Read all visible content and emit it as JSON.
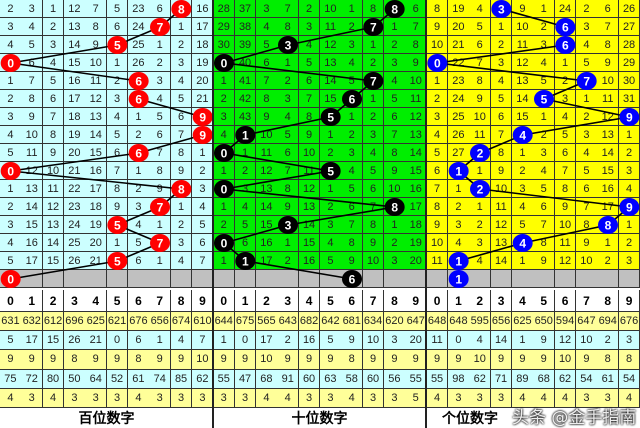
{
  "chart_data": {
    "type": "table",
    "header_digits": [
      "0",
      "1",
      "2",
      "3",
      "4",
      "5",
      "6",
      "7",
      "8",
      "9"
    ],
    "panels": [
      {
        "label": "百位数字",
        "cell_color": "#ccffff",
        "ball_color": "#ff0000",
        "hits": [
          8,
          7,
          5,
          0,
          6,
          6,
          9,
          9,
          6,
          0,
          8,
          7,
          5,
          7,
          5,
          0
        ],
        "rows": [
          [
            2,
            3,
            1,
            12,
            7,
            5,
            23,
            6,
            8,
            16
          ],
          [
            3,
            4,
            2,
            13,
            8,
            6,
            24,
            7,
            1,
            17
          ],
          [
            4,
            5,
            3,
            14,
            9,
            5,
            25,
            1,
            2,
            18
          ],
          [
            0,
            6,
            4,
            15,
            10,
            1,
            26,
            2,
            3,
            19
          ],
          [
            1,
            7,
            5,
            16,
            11,
            2,
            6,
            3,
            4,
            20
          ],
          [
            2,
            8,
            6,
            17,
            12,
            3,
            6,
            4,
            5,
            21
          ],
          [
            3,
            9,
            7,
            18,
            13,
            4,
            1,
            5,
            6,
            9
          ],
          [
            4,
            10,
            8,
            19,
            14,
            5,
            2,
            6,
            7,
            9
          ],
          [
            5,
            11,
            9,
            20,
            15,
            6,
            6,
            7,
            8,
            1
          ],
          [
            0,
            12,
            10,
            21,
            16,
            7,
            1,
            8,
            9,
            2
          ],
          [
            1,
            13,
            11,
            22,
            17,
            8,
            2,
            9,
            8,
            3
          ],
          [
            2,
            14,
            12,
            23,
            18,
            9,
            3,
            7,
            1,
            4
          ],
          [
            3,
            15,
            13,
            24,
            19,
            5,
            4,
            1,
            2,
            5
          ],
          [
            4,
            16,
            14,
            25,
            20,
            1,
            5,
            7,
            3,
            6
          ],
          [
            5,
            17,
            15,
            26,
            21,
            5,
            6,
            1,
            4,
            7
          ]
        ],
        "stats": [
          [
            631,
            632,
            612,
            696,
            625,
            621,
            676,
            656,
            674,
            610
          ],
          [
            5,
            17,
            15,
            26,
            21,
            0,
            6,
            1,
            4,
            7
          ],
          [
            9,
            9,
            9,
            8,
            9,
            9,
            8,
            9,
            9,
            10
          ],
          [
            75,
            72,
            80,
            50,
            64,
            52,
            61,
            74,
            85,
            62
          ],
          [
            4,
            3,
            4,
            3,
            3,
            3,
            4,
            3,
            3,
            3
          ]
        ]
      },
      {
        "label": "十位数字",
        "cell_color": "#00ee00",
        "ball_color": "#000000",
        "hits": [
          8,
          7,
          3,
          0,
          7,
          6,
          5,
          1,
          0,
          5,
          0,
          8,
          3,
          0,
          1,
          6
        ],
        "rows": [
          [
            28,
            37,
            3,
            7,
            2,
            10,
            1,
            8,
            8,
            6
          ],
          [
            29,
            38,
            4,
            8,
            3,
            11,
            2,
            7,
            1,
            7
          ],
          [
            30,
            39,
            5,
            3,
            4,
            12,
            3,
            1,
            2,
            8
          ],
          [
            0,
            40,
            6,
            1,
            5,
            13,
            4,
            2,
            3,
            9
          ],
          [
            1,
            41,
            7,
            2,
            6,
            14,
            5,
            7,
            4,
            10
          ],
          [
            2,
            42,
            8,
            3,
            7,
            15,
            6,
            1,
            5,
            11
          ],
          [
            3,
            43,
            9,
            4,
            8,
            5,
            1,
            2,
            6,
            12
          ],
          [
            4,
            1,
            10,
            5,
            9,
            1,
            2,
            3,
            7,
            13
          ],
          [
            0,
            1,
            11,
            6,
            10,
            2,
            3,
            4,
            8,
            14
          ],
          [
            1,
            2,
            12,
            7,
            11,
            5,
            4,
            5,
            9,
            15
          ],
          [
            0,
            3,
            13,
            8,
            12,
            1,
            5,
            6,
            10,
            16
          ],
          [
            1,
            4,
            14,
            9,
            13,
            2,
            6,
            7,
            8,
            17
          ],
          [
            2,
            5,
            15,
            3,
            14,
            3,
            7,
            8,
            1,
            18
          ],
          [
            0,
            6,
            16,
            1,
            15,
            4,
            8,
            9,
            2,
            19
          ],
          [
            1,
            1,
            17,
            2,
            16,
            5,
            9,
            10,
            3,
            20
          ]
        ],
        "stats": [
          [
            644,
            675,
            565,
            643,
            682,
            642,
            681,
            634,
            620,
            647
          ],
          [
            1,
            0,
            17,
            2,
            16,
            5,
            9,
            10,
            3,
            20
          ],
          [
            9,
            9,
            10,
            9,
            9,
            9,
            8,
            9,
            9,
            9
          ],
          [
            55,
            47,
            68,
            91,
            60,
            63,
            58,
            60,
            56,
            55
          ],
          [
            3,
            3,
            4,
            4,
            3,
            3,
            4,
            3,
            3,
            5
          ]
        ]
      },
      {
        "label": "个位数字",
        "cell_color": "#ffff00",
        "ball_color": "#0000ff",
        "hits": [
          3,
          6,
          6,
          0,
          7,
          5,
          9,
          4,
          2,
          1,
          2,
          9,
          8,
          4,
          1,
          1
        ],
        "rows": [
          [
            8,
            19,
            4,
            3,
            9,
            1,
            24,
            2,
            6,
            26
          ],
          [
            9,
            20,
            5,
            1,
            10,
            2,
            6,
            3,
            7,
            27
          ],
          [
            10,
            21,
            6,
            2,
            11,
            3,
            6,
            4,
            8,
            28
          ],
          [
            0,
            22,
            7,
            3,
            12,
            4,
            1,
            5,
            9,
            29
          ],
          [
            1,
            23,
            8,
            4,
            13,
            5,
            2,
            7,
            10,
            30
          ],
          [
            2,
            24,
            9,
            5,
            14,
            5,
            3,
            1,
            11,
            31
          ],
          [
            3,
            25,
            10,
            6,
            15,
            1,
            4,
            2,
            12,
            9
          ],
          [
            4,
            26,
            11,
            7,
            4,
            2,
            5,
            3,
            13,
            1
          ],
          [
            5,
            27,
            2,
            8,
            1,
            3,
            6,
            4,
            14,
            2
          ],
          [
            6,
            1,
            1,
            9,
            2,
            4,
            7,
            5,
            15,
            3
          ],
          [
            7,
            1,
            2,
            10,
            3,
            5,
            8,
            6,
            16,
            4
          ],
          [
            8,
            2,
            1,
            11,
            4,
            6,
            9,
            7,
            17,
            9
          ],
          [
            9,
            3,
            2,
            12,
            5,
            7,
            10,
            8,
            8,
            1
          ],
          [
            10,
            4,
            3,
            13,
            4,
            8,
            11,
            9,
            1,
            2
          ],
          [
            11,
            1,
            4,
            14,
            1,
            9,
            12,
            10,
            2,
            3
          ]
        ],
        "stats": [
          [
            648,
            648,
            595,
            656,
            625,
            650,
            594,
            647,
            694,
            676
          ],
          [
            11,
            0,
            4,
            14,
            1,
            9,
            12,
            10,
            2,
            3
          ],
          [
            9,
            9,
            10,
            9,
            9,
            9,
            10,
            9,
            8,
            8
          ],
          [
            55,
            98,
            62,
            71,
            89,
            68,
            62,
            54,
            61,
            54
          ],
          [
            4,
            3,
            3,
            3,
            4,
            4,
            4,
            3,
            3,
            4
          ]
        ]
      }
    ],
    "stat_row_colors": [
      "#ffff99",
      "#ccffff",
      "#ffff99",
      "#ccffff",
      "#ffff99"
    ],
    "empty_row_color": "#c0c0c0"
  },
  "watermark": "头条 @金手指南"
}
